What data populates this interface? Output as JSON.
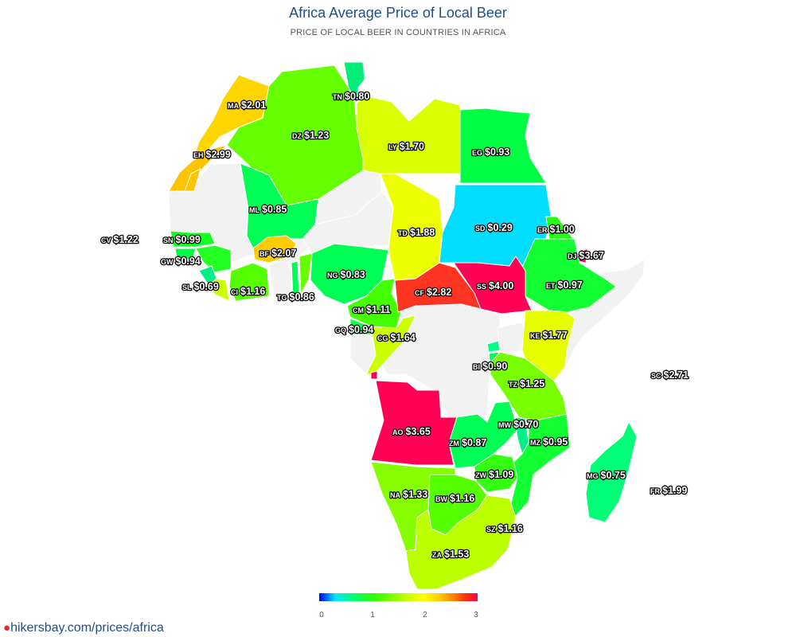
{
  "header": {
    "title": "Africa Average Price of Local Beer",
    "subtitle": "PRICE OF LOCAL BEER IN COUNTRIES IN AFRICA"
  },
  "legend": {
    "ticks": [
      "0",
      "1",
      "2",
      "3"
    ],
    "range": [
      0,
      3
    ],
    "scale_colors": [
      "#0000ff",
      "#00e5ff",
      "#00ff66",
      "#33ff00",
      "#7fff00",
      "#ccff00",
      "#ffff00",
      "#ffcc00",
      "#ff8800",
      "#ff3300",
      "#ff0055"
    ]
  },
  "footer": {
    "link_text": "hikersbay.com/prices/africa",
    "pin_icon": "map-pin-icon"
  },
  "no_data_color": "#f2f2f2",
  "countries": [
    {
      "code": "MA",
      "price": "$2.01",
      "value": 2.01,
      "color": "#ffd500"
    },
    {
      "code": "EH",
      "price": "$2.99",
      "value": 2.99,
      "color": "#ffc400"
    },
    {
      "code": "DZ",
      "price": "$1.23",
      "value": 1.23,
      "color": "#66ff00"
    },
    {
      "code": "TN",
      "price": "$0.80",
      "value": 0.8,
      "color": "#00ee77"
    },
    {
      "code": "LY",
      "price": "$1.70",
      "value": 1.7,
      "color": "#d9ff00"
    },
    {
      "code": "EG",
      "price": "$0.93",
      "value": 0.93,
      "color": "#00ff44"
    },
    {
      "code": "ML",
      "price": "$0.85",
      "value": 0.85,
      "color": "#00ff55"
    },
    {
      "code": "CV",
      "price": "$1.22",
      "value": 1.22,
      "color": "#66ff00"
    },
    {
      "code": "SN",
      "price": "$0.99",
      "value": 0.99,
      "color": "#11ff22"
    },
    {
      "code": "GW",
      "price": "$0.94",
      "value": 0.94,
      "color": "#00ff44"
    },
    {
      "code": "SL",
      "price": "$0.69",
      "value": 0.69,
      "color": "#00ee88"
    },
    {
      "code": "BF",
      "price": "$2.07",
      "value": 2.07,
      "color": "#ffcc00"
    },
    {
      "code": "CI",
      "price": "$1.16",
      "value": 1.16,
      "color": "#55ff00"
    },
    {
      "code": "TG",
      "price": "$0.86",
      "value": 0.86,
      "color": "#00ff55"
    },
    {
      "code": "NG",
      "price": "$0.83",
      "value": 0.83,
      "color": "#00ff55"
    },
    {
      "code": "SD",
      "price": "$0.29",
      "value": 0.29,
      "color": "#00ddff"
    },
    {
      "code": "ER",
      "price": "$1.00",
      "value": 1.0,
      "color": "#22ff11"
    },
    {
      "code": "DJ",
      "price": "$3.67",
      "value": 3.67,
      "color": "#ff0055"
    },
    {
      "code": "TD",
      "price": "$1.88",
      "value": 1.88,
      "color": "#eeff00"
    },
    {
      "code": "CM",
      "price": "$1.11",
      "value": 1.11,
      "color": "#44ff00"
    },
    {
      "code": "CF",
      "price": "$2.82",
      "value": 2.82,
      "color": "#ff3322"
    },
    {
      "code": "SS",
      "price": "$4.00",
      "value": 4.0,
      "color": "#ff0055"
    },
    {
      "code": "ET",
      "price": "$0.97",
      "value": 0.97,
      "color": "#11ff33"
    },
    {
      "code": "GQ",
      "price": "$0.94",
      "value": 0.94,
      "color": "#00ff44"
    },
    {
      "code": "CG",
      "price": "$1.64",
      "value": 1.64,
      "color": "#ccff00"
    },
    {
      "code": "KE",
      "price": "$1.77",
      "value": 1.77,
      "color": "#e6ff00"
    },
    {
      "code": "BI",
      "price": "$0.90",
      "value": 0.9,
      "color": "#00ff55"
    },
    {
      "code": "SC",
      "price": "$2.71",
      "value": 2.71,
      "color": "#ff6600"
    },
    {
      "code": "TZ",
      "price": "$1.25",
      "value": 1.25,
      "color": "#77ff00"
    },
    {
      "code": "AO",
      "price": "$3.65",
      "value": 3.65,
      "color": "#ff0055"
    },
    {
      "code": "MW",
      "price": "$0.70",
      "value": 0.7,
      "color": "#00ee88"
    },
    {
      "code": "ZM",
      "price": "$0.87",
      "value": 0.87,
      "color": "#00ff55"
    },
    {
      "code": "MZ",
      "price": "$0.95",
      "value": 0.95,
      "color": "#11ff33"
    },
    {
      "code": "MG",
      "price": "$0.75",
      "value": 0.75,
      "color": "#00ff77"
    },
    {
      "code": "ZW",
      "price": "$1.09",
      "value": 1.09,
      "color": "#33ff11"
    },
    {
      "code": "NA",
      "price": "$1.33",
      "value": 1.33,
      "color": "#88ff00"
    },
    {
      "code": "BW",
      "price": "$1.16",
      "value": 1.16,
      "color": "#55ff00"
    },
    {
      "code": "FR",
      "price": "$1.99",
      "value": 1.99,
      "color": "#ffd500"
    },
    {
      "code": "SZ",
      "price": "$1.16",
      "value": 1.16,
      "color": "#55ff00"
    },
    {
      "code": "ZA",
      "price": "$1.53",
      "value": 1.53,
      "color": "#bbff00"
    }
  ]
}
